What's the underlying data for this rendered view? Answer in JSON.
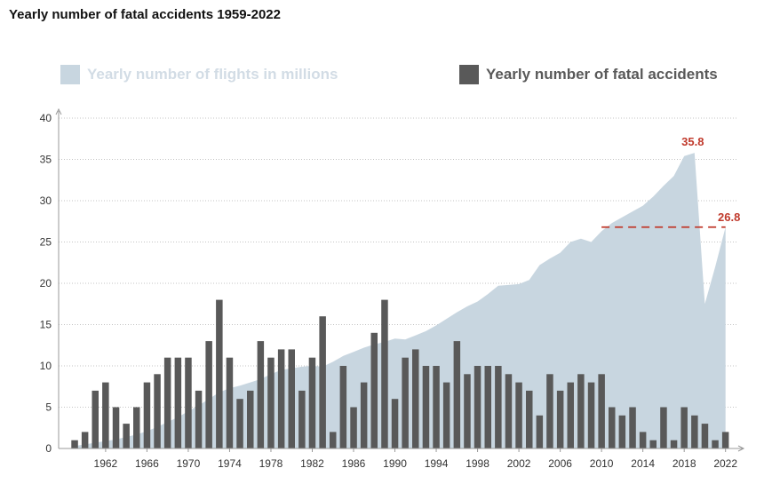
{
  "colors": {
    "area": "#c8d6e0",
    "bar": "#595959",
    "annotation": "#c0392b",
    "grid": "#b0b0b0",
    "axis": "#999999"
  },
  "chart_data": {
    "type": "bar",
    "title": "Yearly number of fatal accidents 1959-2022",
    "legend_placement": "top",
    "grid": true,
    "ylim": [
      0,
      40
    ],
    "yticks": [
      0,
      5,
      10,
      15,
      20,
      25,
      30,
      35,
      40
    ],
    "xticks": [
      1962,
      1966,
      1970,
      1974,
      1978,
      1982,
      1986,
      1990,
      1994,
      1998,
      2002,
      2006,
      2010,
      2014,
      2018,
      2022
    ],
    "x": [
      1959,
      1960,
      1961,
      1962,
      1963,
      1964,
      1965,
      1966,
      1967,
      1968,
      1969,
      1970,
      1971,
      1972,
      1973,
      1974,
      1975,
      1976,
      1977,
      1978,
      1979,
      1980,
      1981,
      1982,
      1983,
      1984,
      1985,
      1986,
      1987,
      1988,
      1989,
      1990,
      1991,
      1992,
      1993,
      1994,
      1995,
      1996,
      1997,
      1998,
      1999,
      2000,
      2001,
      2002,
      2003,
      2004,
      2005,
      2006,
      2007,
      2008,
      2009,
      2010,
      2011,
      2012,
      2013,
      2014,
      2015,
      2016,
      2017,
      2018,
      2019,
      2020,
      2021,
      2022
    ],
    "series": [
      {
        "name": "Yearly number of flights in millions",
        "type": "area",
        "values": [
          0.3,
          0.5,
          0.7,
          0.9,
          1.1,
          1.4,
          1.7,
          2.1,
          2.6,
          3.2,
          3.8,
          4.5,
          5.2,
          6.0,
          6.8,
          7.3,
          7.6,
          8.0,
          8.4,
          9.0,
          9.5,
          9.7,
          9.9,
          10.0,
          9.9,
          10.5,
          11.2,
          11.7,
          12.2,
          12.6,
          12.9,
          13.3,
          13.2,
          13.7,
          14.2,
          14.9,
          15.7,
          16.5,
          17.2,
          17.8,
          18.7,
          19.7,
          19.8,
          19.9,
          20.4,
          22.2,
          23.0,
          23.7,
          25.0,
          25.4,
          25.0,
          26.3,
          27.3,
          28.0,
          28.7,
          29.4,
          30.5,
          31.8,
          33.0,
          35.4,
          35.8,
          17.5,
          22.0,
          26.8
        ]
      },
      {
        "name": "Yearly number of fatal accidents",
        "type": "bar",
        "values": [
          1,
          2,
          7,
          8,
          5,
          3,
          5,
          8,
          9,
          11,
          11,
          11,
          7,
          13,
          18,
          11,
          6,
          7,
          13,
          11,
          12,
          12,
          7,
          11,
          16,
          2,
          10,
          5,
          8,
          14,
          18,
          6,
          11,
          12,
          10,
          10,
          8,
          13,
          9,
          10,
          10,
          10,
          9,
          8,
          7,
          4,
          9,
          7,
          8,
          9,
          8,
          9,
          5,
          4,
          5,
          2,
          1,
          5,
          1,
          5,
          4,
          3,
          1,
          2
        ]
      }
    ],
    "annotations": [
      {
        "label": "35.8",
        "x": 2019,
        "y": 35.8
      },
      {
        "label": "26.8",
        "x": 2022,
        "y": 26.8,
        "reference_line_from": 2010
      }
    ]
  }
}
